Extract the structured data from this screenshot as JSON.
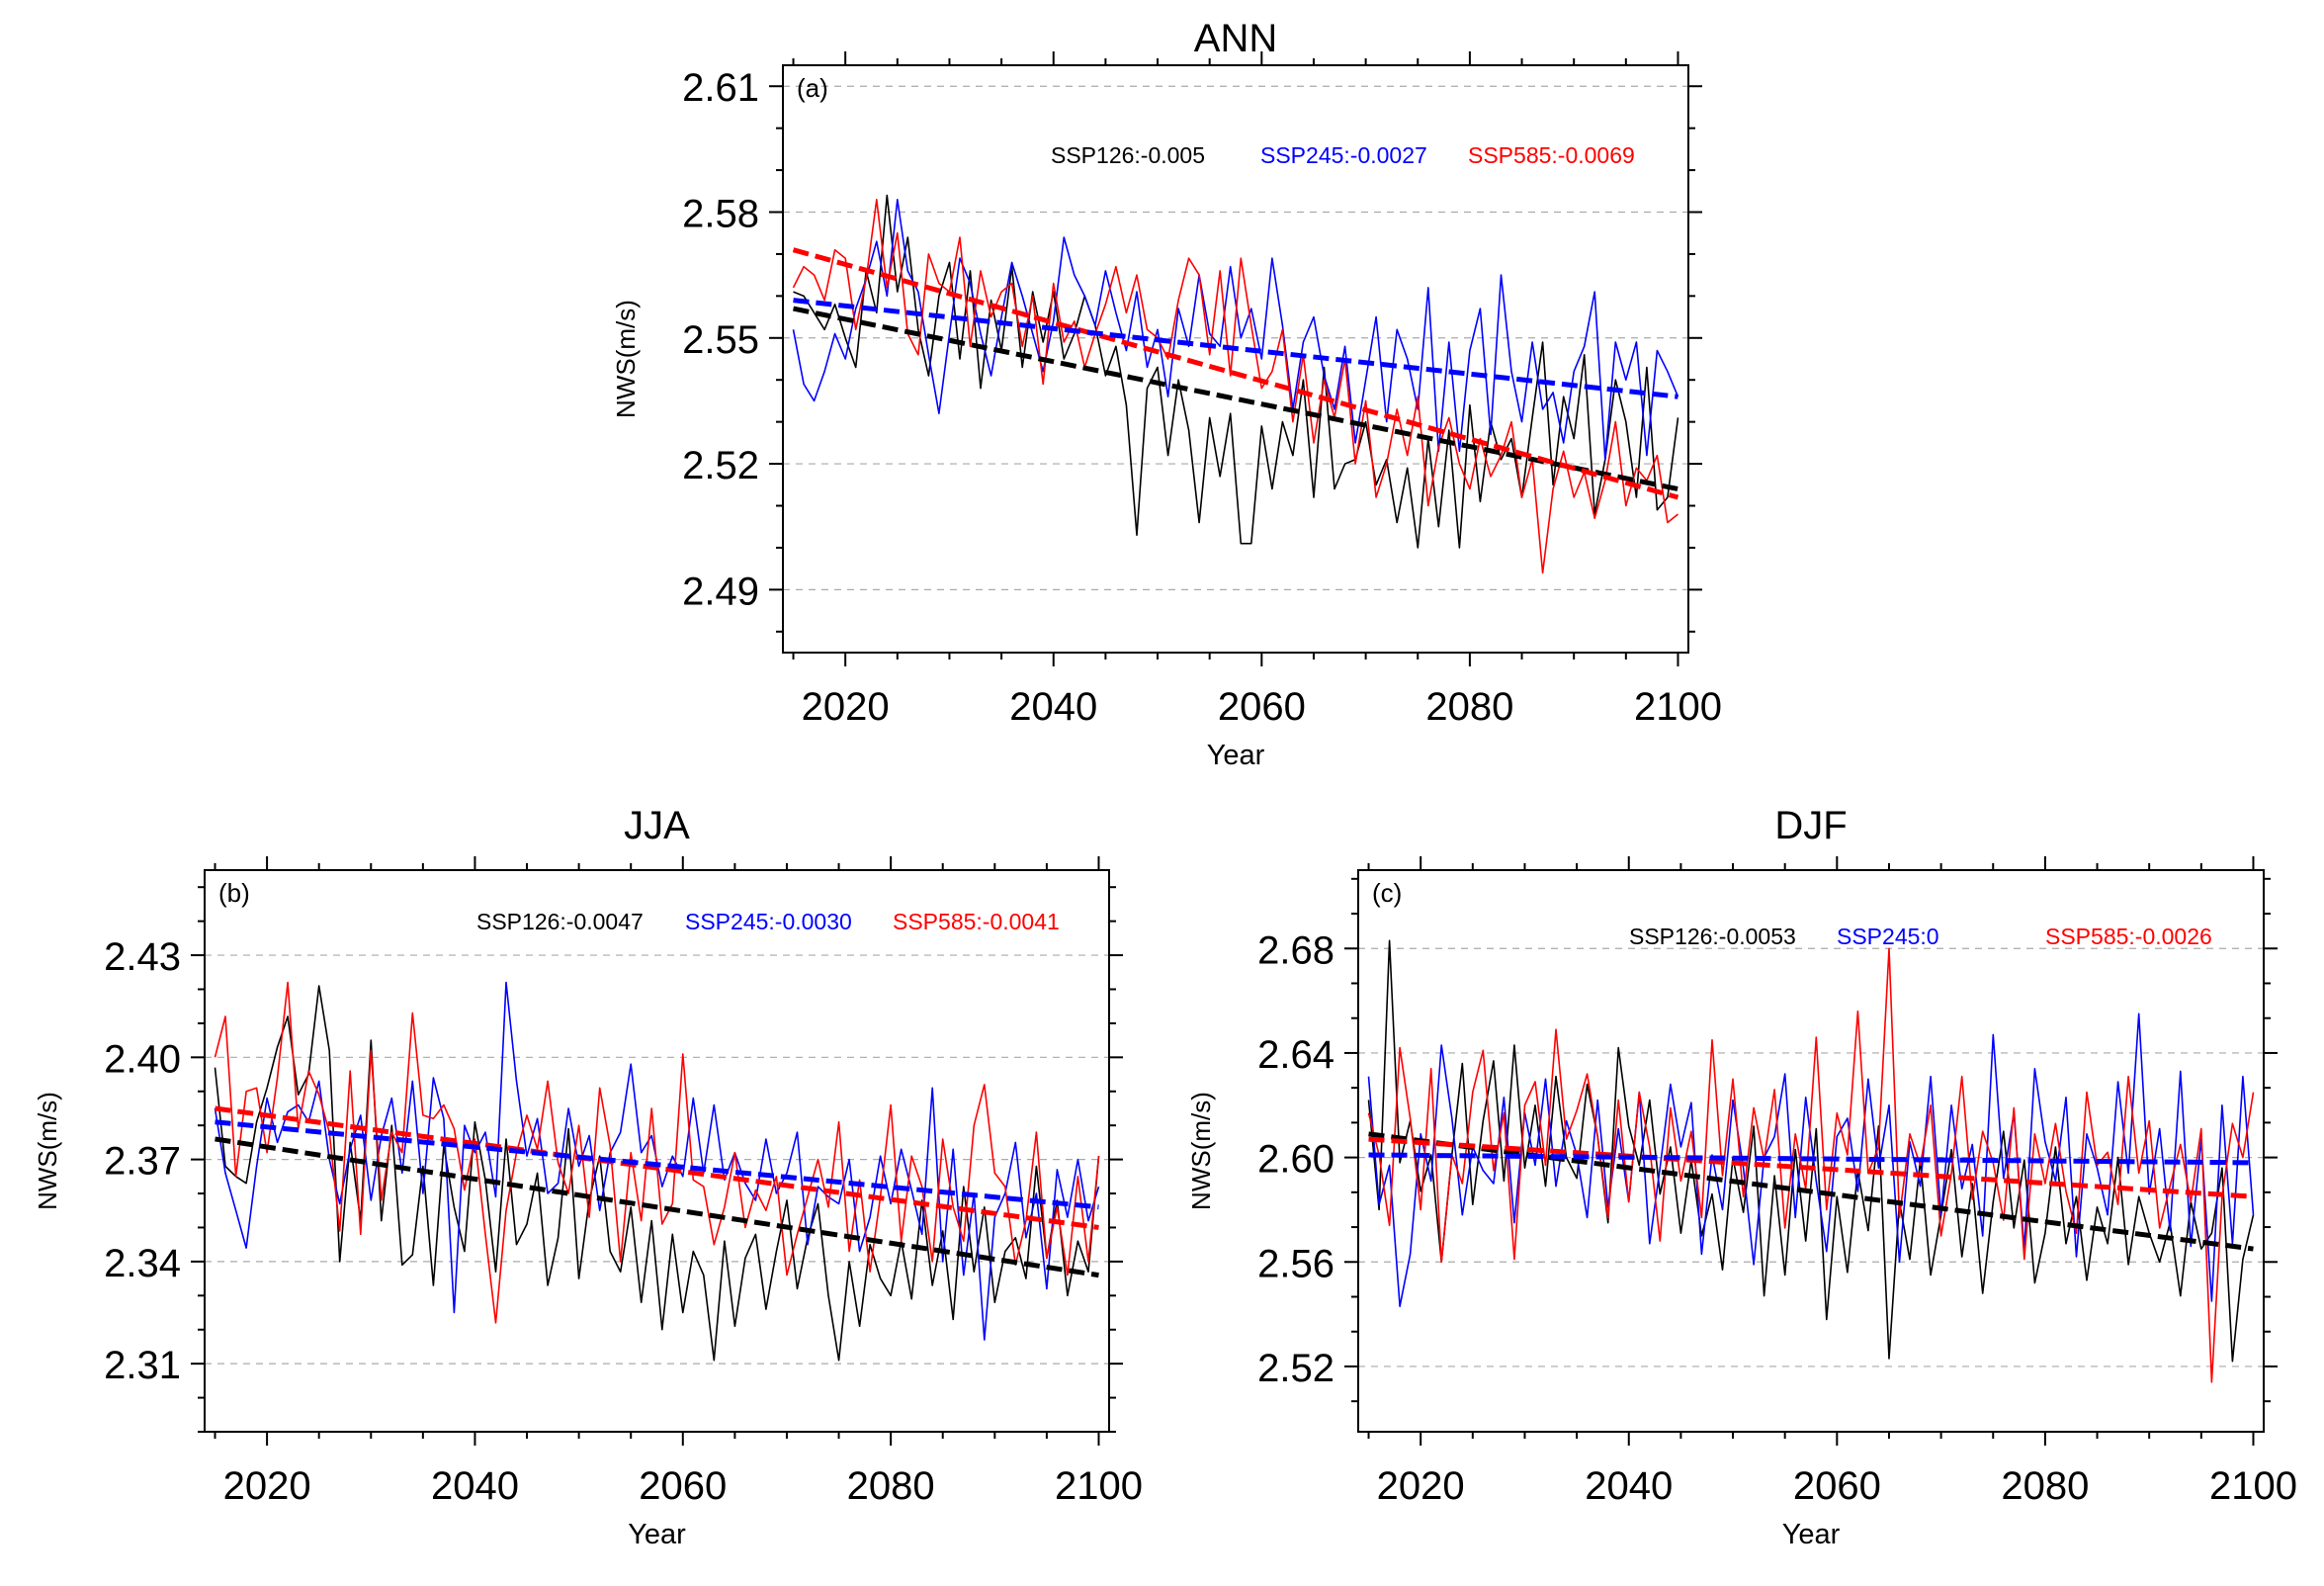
{
  "figure": {
    "xlabel_common": "Year"
  },
  "colors": {
    "ssp126": "#000000",
    "ssp245": "#0000ff",
    "ssp585": "#ff0000",
    "grid": "#aaaaaa",
    "axis": "#000000"
  },
  "chart_data": [
    {
      "id": "ann",
      "type": "line",
      "title": "ANN",
      "panel_label": "(a)",
      "xlabel": "Year",
      "ylabel": "NWS(m/s)",
      "xlim": [
        2014,
        2101
      ],
      "ylim": [
        2.475,
        2.615
      ],
      "xticks": [
        2020,
        2040,
        2060,
        2080,
        2100
      ],
      "xtick_labels": [
        "2020",
        "2040",
        "2060",
        "2080",
        "2100"
      ],
      "yticks": [
        2.61,
        2.58,
        2.55,
        2.52,
        2.49
      ],
      "ytick_labels": [
        "2.61",
        "2.58",
        "2.55",
        "2.52",
        "2.49"
      ],
      "x_start": 2015,
      "legend": [
        {
          "name": "SSP126",
          "text": "SSP126:-0.005",
          "color": "#000000"
        },
        {
          "name": "SSP245",
          "text": "SSP245:-0.0027",
          "color": "#0000ff"
        },
        {
          "name": "SSP585",
          "text": "SSP585:-0.0069",
          "color": "#ff0000"
        }
      ],
      "series": [
        {
          "name": "SSP126",
          "color": "#000000",
          "trend": [
            2.557,
            2.514
          ],
          "values": [
            2.561,
            2.56,
            2.556,
            2.552,
            2.558,
            2.55,
            2.543,
            2.566,
            2.556,
            2.584,
            2.561,
            2.574,
            2.552,
            2.541,
            2.56,
            2.568,
            2.545,
            2.566,
            2.538,
            2.559,
            2.547,
            2.567,
            2.543,
            2.561,
            2.549,
            2.561,
            2.545,
            2.551,
            2.56,
            2.553,
            2.541,
            2.548,
            2.534,
            2.503,
            2.538,
            2.543,
            2.522,
            2.54,
            2.528,
            2.506,
            2.531,
            2.517,
            2.532,
            2.501,
            2.501,
            2.529,
            2.514,
            2.53,
            2.522,
            2.54,
            2.512,
            2.543,
            2.514,
            2.52,
            2.521,
            2.53,
            2.515,
            2.521,
            2.506,
            2.519,
            2.5,
            2.526,
            2.505,
            2.528,
            2.5,
            2.534,
            2.511,
            2.53,
            2.521,
            2.526,
            2.512,
            2.531,
            2.549,
            2.515,
            2.536,
            2.526,
            2.546,
            2.508,
            2.521,
            2.54,
            2.53,
            2.512,
            2.543,
            2.509,
            2.512,
            2.531
          ]
        },
        {
          "name": "SSP245",
          "color": "#0000ff",
          "trend": [
            2.559,
            2.536
          ],
          "values": [
            2.552,
            2.539,
            2.535,
            2.542,
            2.551,
            2.545,
            2.557,
            2.564,
            2.573,
            2.56,
            2.583,
            2.566,
            2.561,
            2.546,
            2.532,
            2.551,
            2.569,
            2.563,
            2.551,
            2.541,
            2.555,
            2.568,
            2.56,
            2.551,
            2.542,
            2.554,
            2.574,
            2.565,
            2.56,
            2.553,
            2.566,
            2.556,
            2.547,
            2.561,
            2.543,
            2.552,
            2.536,
            2.557,
            2.548,
            2.565,
            2.551,
            2.548,
            2.567,
            2.55,
            2.557,
            2.545,
            2.569,
            2.553,
            2.533,
            2.549,
            2.555,
            2.541,
            2.533,
            2.548,
            2.525,
            2.54,
            2.555,
            2.53,
            2.552,
            2.545,
            2.533,
            2.562,
            2.523,
            2.549,
            2.523,
            2.547,
            2.557,
            2.527,
            2.565,
            2.542,
            2.53,
            2.549,
            2.533,
            2.537,
            2.525,
            2.542,
            2.548,
            2.561,
            2.521,
            2.549,
            2.54,
            2.549,
            2.522,
            2.547,
            2.542,
            2.536
          ]
        },
        {
          "name": "SSP585",
          "color": "#ff0000",
          "trend": [
            2.571,
            2.512
          ],
          "values": [
            2.562,
            2.567,
            2.565,
            2.559,
            2.571,
            2.569,
            2.552,
            2.564,
            2.583,
            2.562,
            2.575,
            2.551,
            2.546,
            2.57,
            2.563,
            2.561,
            2.574,
            2.548,
            2.566,
            2.555,
            2.561,
            2.563,
            2.548,
            2.56,
            2.539,
            2.563,
            2.549,
            2.554,
            2.543,
            2.551,
            2.558,
            2.567,
            2.556,
            2.565,
            2.552,
            2.55,
            2.545,
            2.559,
            2.569,
            2.565,
            2.546,
            2.566,
            2.541,
            2.569,
            2.553,
            2.538,
            2.542,
            2.552,
            2.53,
            2.546,
            2.525,
            2.54,
            2.531,
            2.545,
            2.52,
            2.535,
            2.512,
            2.52,
            2.533,
            2.522,
            2.536,
            2.51,
            2.524,
            2.531,
            2.52,
            2.514,
            2.526,
            2.517,
            2.522,
            2.53,
            2.512,
            2.521,
            2.494,
            2.514,
            2.523,
            2.512,
            2.518,
            2.507,
            2.516,
            2.53,
            2.51,
            2.519,
            2.516,
            2.522,
            2.506,
            2.508
          ]
        }
      ]
    },
    {
      "id": "jja",
      "type": "line",
      "title": "JJA",
      "panel_label": "(b)",
      "xlabel": "Year",
      "ylabel": "NWS(m/s)",
      "xlim": [
        2014,
        2101
      ],
      "ylim": [
        2.29,
        2.455
      ],
      "xticks": [
        2020,
        2040,
        2060,
        2080,
        2100
      ],
      "xtick_labels": [
        "2020",
        "2040",
        "2060",
        "2080",
        "2100"
      ],
      "yticks": [
        2.43,
        2.4,
        2.37,
        2.34,
        2.31
      ],
      "ytick_labels": [
        "2.43",
        "2.40",
        "2.37",
        "2.34",
        "2.31"
      ],
      "x_start": 2015,
      "legend": [
        {
          "name": "SSP126",
          "text": "SSP126:-0.0047",
          "color": "#000000"
        },
        {
          "name": "SSP245",
          "text": "SSP245:-0.0030",
          "color": "#0000ff"
        },
        {
          "name": "SSP585",
          "text": "SSP585:-0.0041",
          "color": "#ff0000"
        }
      ],
      "series": [
        {
          "name": "SSP126",
          "color": "#000000",
          "trend": [
            2.376,
            2.336
          ],
          "values": [
            2.397,
            2.368,
            2.365,
            2.363,
            2.381,
            2.391,
            2.403,
            2.412,
            2.389,
            2.395,
            2.421,
            2.402,
            2.34,
            2.375,
            2.352,
            2.405,
            2.352,
            2.38,
            2.339,
            2.342,
            2.368,
            2.333,
            2.374,
            2.356,
            2.343,
            2.381,
            2.364,
            2.337,
            2.376,
            2.345,
            2.351,
            2.366,
            2.333,
            2.347,
            2.379,
            2.335,
            2.358,
            2.371,
            2.343,
            2.337,
            2.356,
            2.328,
            2.352,
            2.32,
            2.348,
            2.325,
            2.343,
            2.336,
            2.311,
            2.346,
            2.321,
            2.341,
            2.348,
            2.326,
            2.343,
            2.358,
            2.332,
            2.347,
            2.357,
            2.33,
            2.311,
            2.34,
            2.321,
            2.345,
            2.335,
            2.33,
            2.346,
            2.329,
            2.358,
            2.333,
            2.349,
            2.323,
            2.362,
            2.337,
            2.356,
            2.328,
            2.343,
            2.347,
            2.335,
            2.368,
            2.341,
            2.358,
            2.33,
            2.346,
            2.337,
            2.371
          ]
        },
        {
          "name": "SSP245",
          "color": "#0000ff",
          "trend": [
            2.381,
            2.356
          ],
          "values": [
            2.385,
            2.366,
            2.355,
            2.344,
            2.368,
            2.388,
            2.375,
            2.384,
            2.386,
            2.381,
            2.393,
            2.37,
            2.357,
            2.373,
            2.383,
            2.358,
            2.377,
            2.388,
            2.366,
            2.393,
            2.36,
            2.394,
            2.382,
            2.325,
            2.38,
            2.372,
            2.378,
            2.359,
            2.422,
            2.393,
            2.371,
            2.382,
            2.36,
            2.363,
            2.385,
            2.368,
            2.377,
            2.355,
            2.372,
            2.378,
            2.398,
            2.372,
            2.377,
            2.362,
            2.371,
            2.365,
            2.388,
            2.366,
            2.386,
            2.364,
            2.372,
            2.363,
            2.358,
            2.376,
            2.36,
            2.366,
            2.378,
            2.345,
            2.362,
            2.359,
            2.357,
            2.37,
            2.343,
            2.353,
            2.371,
            2.357,
            2.373,
            2.361,
            2.348,
            2.391,
            2.34,
            2.373,
            2.336,
            2.36,
            2.317,
            2.353,
            2.36,
            2.375,
            2.347,
            2.36,
            2.332,
            2.367,
            2.353,
            2.37,
            2.352,
            2.362
          ]
        },
        {
          "name": "SSP585",
          "color": "#ff0000",
          "trend": [
            2.385,
            2.35
          ],
          "values": [
            2.4,
            2.412,
            2.365,
            2.39,
            2.391,
            2.372,
            2.394,
            2.422,
            2.379,
            2.396,
            2.389,
            2.378,
            2.349,
            2.396,
            2.348,
            2.402,
            2.358,
            2.378,
            2.372,
            2.413,
            2.383,
            2.382,
            2.386,
            2.379,
            2.361,
            2.376,
            2.348,
            2.322,
            2.355,
            2.372,
            2.383,
            2.373,
            2.393,
            2.369,
            2.36,
            2.38,
            2.353,
            2.391,
            2.374,
            2.34,
            2.372,
            2.352,
            2.385,
            2.351,
            2.357,
            2.401,
            2.364,
            2.362,
            2.345,
            2.356,
            2.372,
            2.35,
            2.361,
            2.355,
            2.365,
            2.336,
            2.348,
            2.359,
            2.37,
            2.356,
            2.381,
            2.343,
            2.364,
            2.337,
            2.359,
            2.386,
            2.346,
            2.371,
            2.362,
            2.34,
            2.376,
            2.356,
            2.346,
            2.38,
            2.392,
            2.366,
            2.362,
            2.339,
            2.352,
            2.378,
            2.341,
            2.356,
            2.336,
            2.365,
            2.34,
            2.371
          ]
        }
      ]
    },
    {
      "id": "djf",
      "type": "line",
      "title": "DJF",
      "panel_label": "(c)",
      "xlabel": "Year",
      "ylabel": "NWS(m/s)",
      "xlim": [
        2014,
        2101
      ],
      "ylim": [
        2.495,
        2.71
      ],
      "xticks": [
        2020,
        2040,
        2060,
        2080,
        2100
      ],
      "xtick_labels": [
        "2020",
        "2040",
        "2060",
        "2080",
        "2100"
      ],
      "yticks": [
        2.68,
        2.64,
        2.6,
        2.56,
        2.52
      ],
      "ytick_labels": [
        "2.68",
        "2.64",
        "2.60",
        "2.56",
        "2.52"
      ],
      "x_start": 2015,
      "legend": [
        {
          "name": "SSP126",
          "text": "SSP126:-0.0053",
          "color": "#000000"
        },
        {
          "name": "SSP245",
          "text": "SSP245:0",
          "color": "#0000ff"
        },
        {
          "name": "SSP585",
          "text": "SSP585:-0.0026",
          "color": "#ff0000"
        }
      ],
      "series": [
        {
          "name": "SSP126",
          "color": "#000000",
          "trend": [
            2.609,
            2.565
          ],
          "values": [
            2.622,
            2.58,
            2.683,
            2.598,
            2.614,
            2.587,
            2.601,
            2.56,
            2.601,
            2.636,
            2.582,
            2.614,
            2.637,
            2.591,
            2.643,
            2.596,
            2.62,
            2.589,
            2.631,
            2.6,
            2.592,
            2.628,
            2.608,
            2.575,
            2.642,
            2.612,
            2.597,
            2.622,
            2.586,
            2.604,
            2.571,
            2.599,
            2.57,
            2.586,
            2.557,
            2.6,
            2.579,
            2.612,
            2.547,
            2.593,
            2.555,
            2.603,
            2.568,
            2.611,
            2.538,
            2.585,
            2.556,
            2.595,
            2.572,
            2.612,
            2.523,
            2.583,
            2.561,
            2.599,
            2.555,
            2.578,
            2.603,
            2.562,
            2.59,
            2.548,
            2.583,
            2.61,
            2.573,
            2.599,
            2.552,
            2.571,
            2.604,
            2.567,
            2.585,
            2.553,
            2.581,
            2.567,
            2.6,
            2.559,
            2.585,
            2.571,
            2.56,
            2.575,
            2.547,
            2.583,
            2.565,
            2.571,
            2.596,
            2.522,
            2.561,
            2.578
          ]
        },
        {
          "name": "SSP245",
          "color": "#0000ff",
          "trend": [
            2.601,
            2.598
          ],
          "values": [
            2.631,
            2.582,
            2.597,
            2.543,
            2.563,
            2.609,
            2.591,
            2.643,
            2.615,
            2.578,
            2.604,
            2.595,
            2.59,
            2.623,
            2.575,
            2.617,
            2.597,
            2.63,
            2.589,
            2.614,
            2.601,
            2.577,
            2.622,
            2.581,
            2.611,
            2.583,
            2.625,
            2.567,
            2.596,
            2.628,
            2.604,
            2.621,
            2.563,
            2.601,
            2.58,
            2.622,
            2.596,
            2.559,
            2.6,
            2.608,
            2.632,
            2.577,
            2.623,
            2.591,
            2.564,
            2.608,
            2.615,
            2.587,
            2.63,
            2.596,
            2.62,
            2.56,
            2.606,
            2.589,
            2.631,
            2.578,
            2.62,
            2.588,
            2.605,
            2.57,
            2.647,
            2.592,
            2.617,
            2.565,
            2.634,
            2.606,
            2.591,
            2.623,
            2.562,
            2.609,
            2.596,
            2.578,
            2.629,
            2.594,
            2.655,
            2.586,
            2.611,
            2.572,
            2.633,
            2.566,
            2.607,
            2.545,
            2.62,
            2.567,
            2.631,
            2.578
          ]
        },
        {
          "name": "SSP585",
          "color": "#ff0000",
          "trend": [
            2.607,
            2.585
          ],
          "values": [
            2.617,
            2.601,
            2.574,
            2.642,
            2.615,
            2.58,
            2.634,
            2.56,
            2.601,
            2.59,
            2.625,
            2.641,
            2.595,
            2.617,
            2.561,
            2.62,
            2.629,
            2.597,
            2.649,
            2.607,
            2.618,
            2.632,
            2.608,
            2.577,
            2.622,
            2.583,
            2.625,
            2.604,
            2.568,
            2.619,
            2.591,
            2.61,
            2.577,
            2.645,
            2.593,
            2.63,
            2.585,
            2.619,
            2.599,
            2.626,
            2.573,
            2.609,
            2.588,
            2.646,
            2.58,
            2.617,
            2.601,
            2.656,
            2.594,
            2.604,
            2.68,
            2.577,
            2.609,
            2.597,
            2.62,
            2.57,
            2.594,
            2.631,
            2.584,
            2.61,
            2.598,
            2.576,
            2.619,
            2.561,
            2.609,
            2.59,
            2.613,
            2.587,
            2.571,
            2.625,
            2.597,
            2.602,
            2.582,
            2.631,
            2.594,
            2.614,
            2.573,
            2.589,
            2.605,
            2.583,
            2.611,
            2.514,
            2.585,
            2.613,
            2.6,
            2.625
          ]
        }
      ]
    }
  ]
}
